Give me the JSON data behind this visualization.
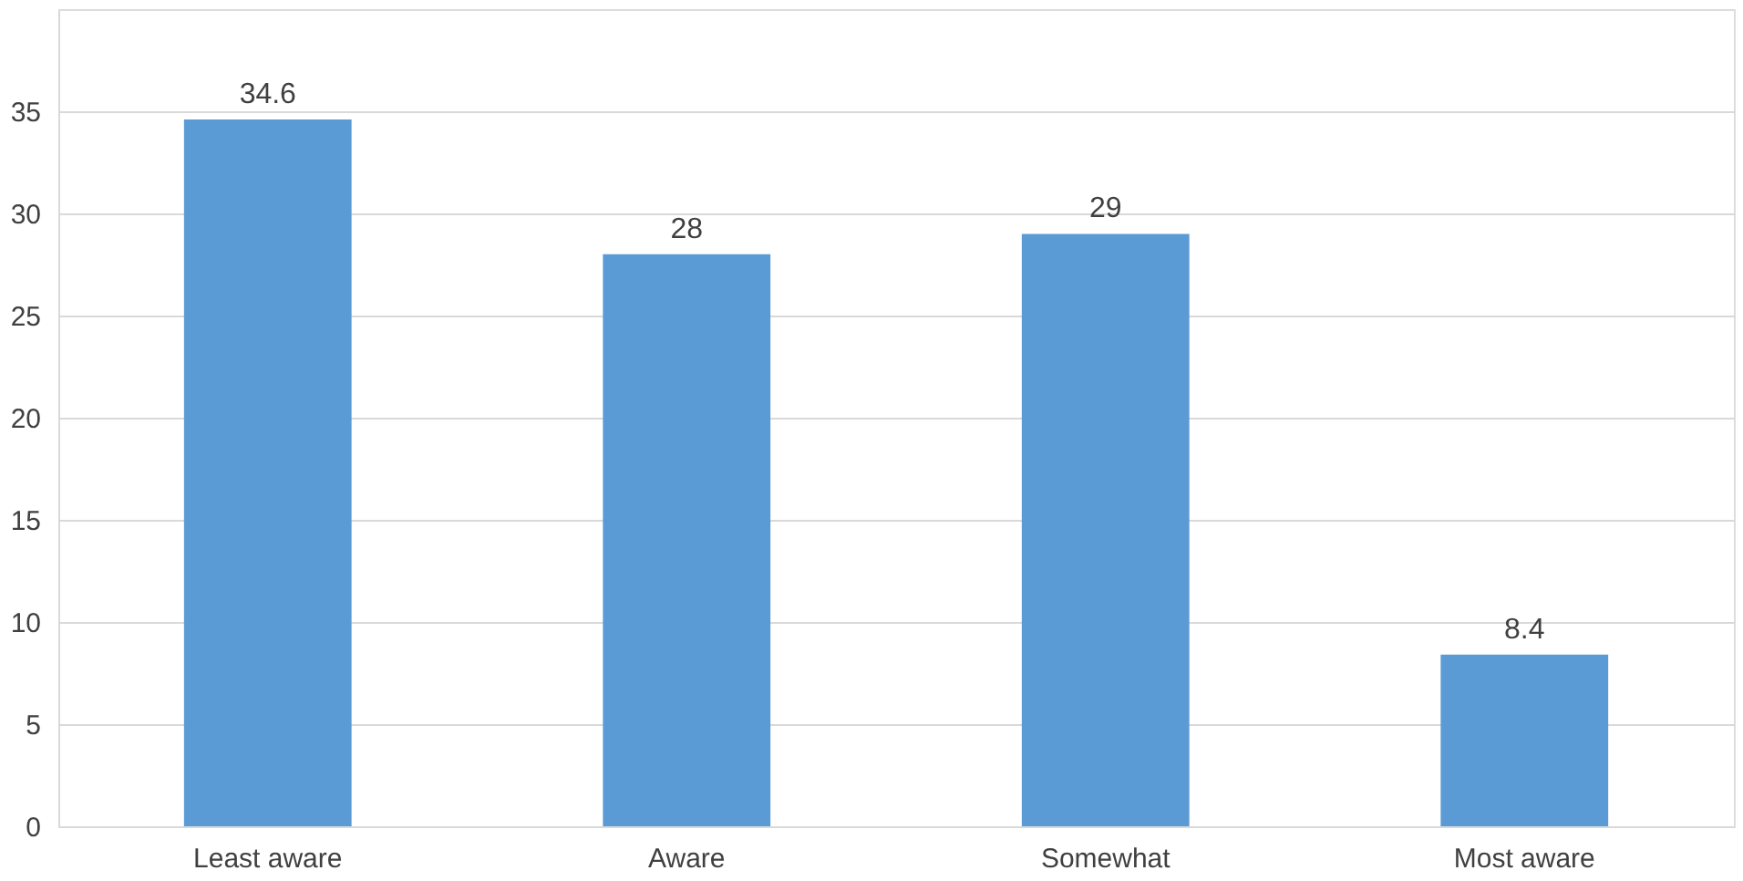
{
  "chart_data": {
    "type": "bar",
    "categories": [
      "Least aware",
      "Aware",
      "Somewhat",
      "Most aware"
    ],
    "values": [
      34.6,
      28,
      29,
      8.4
    ],
    "color": "#5b9bd5",
    "ylim": [
      0,
      40
    ],
    "yticks": [
      0,
      5,
      10,
      15,
      20,
      25,
      30,
      35
    ],
    "grid": "y",
    "data_labels": true
  }
}
